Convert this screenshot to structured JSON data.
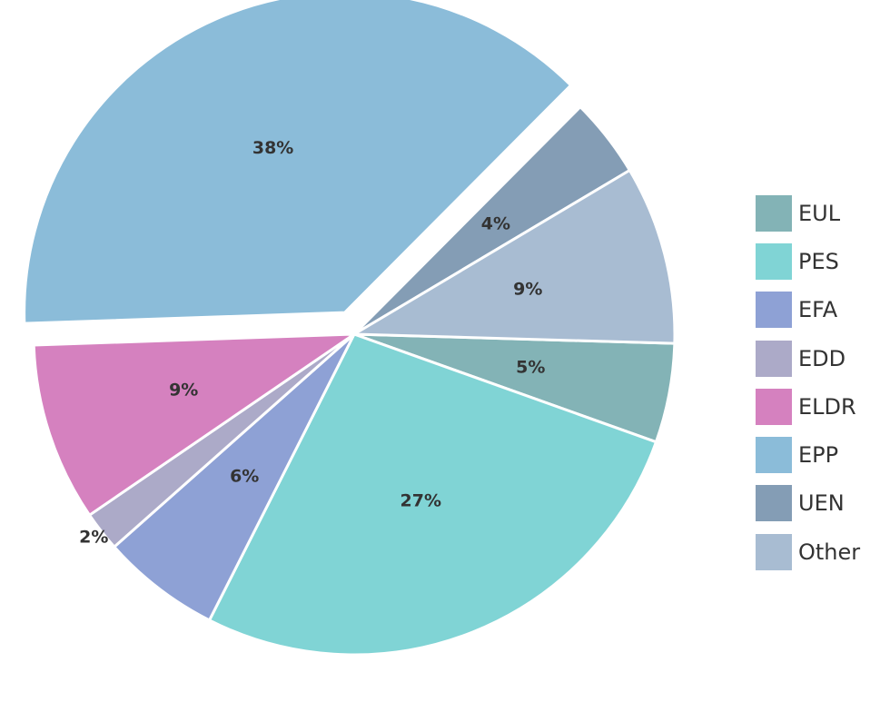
{
  "chart_data": {
    "type": "pie",
    "title": "",
    "legend_position": "right",
    "slices": [
      {
        "label": "EUL",
        "value": 5,
        "display": "5%",
        "color": "#83b3b6"
      },
      {
        "label": "PES",
        "value": 27,
        "display": "27%",
        "color": "#80d4d5"
      },
      {
        "label": "EFA",
        "value": 6,
        "display": "6%",
        "color": "#8ea1d5"
      },
      {
        "label": "EDD",
        "value": 2,
        "display": "2%",
        "color": "#acaac8"
      },
      {
        "label": "ELDR",
        "value": 9,
        "display": "9%",
        "color": "#d581bf"
      },
      {
        "label": "EPP",
        "value": 38,
        "display": "38%",
        "color": "#8bbcd9",
        "exploded": true
      },
      {
        "label": "UEN",
        "value": 4,
        "display": "4%",
        "color": "#849db5"
      },
      {
        "label": "Other",
        "value": 9,
        "display": "9%",
        "color": "#a8bcd2"
      }
    ]
  }
}
